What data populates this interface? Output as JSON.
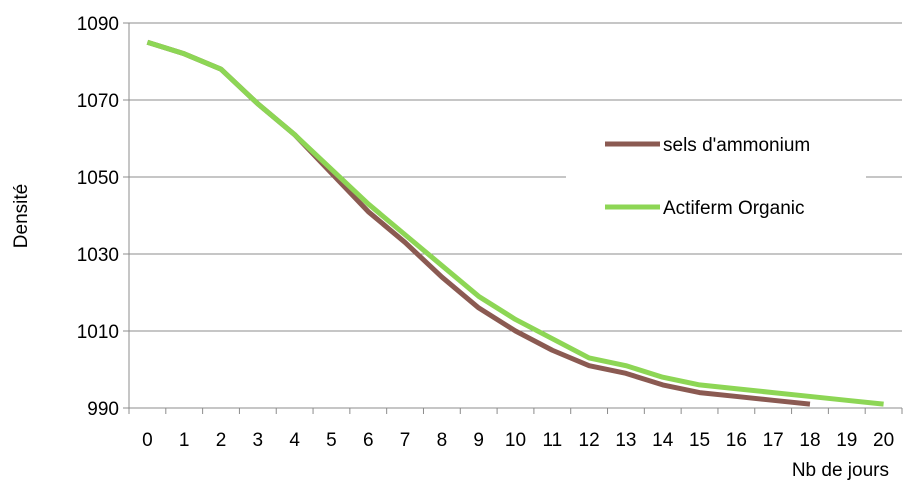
{
  "chart_data": {
    "type": "line",
    "title": "",
    "xlabel": "Nb de jours",
    "ylabel": "Densité",
    "x": [
      0,
      1,
      2,
      3,
      4,
      5,
      6,
      7,
      8,
      9,
      10,
      11,
      12,
      13,
      14,
      15,
      16,
      17,
      18,
      19,
      20
    ],
    "ylim": [
      990,
      1090
    ],
    "yticks": [
      990,
      1010,
      1030,
      1050,
      1070,
      1090
    ],
    "grid": "horizontal",
    "legend_position": "right",
    "series": [
      {
        "name": "sels d'ammonium",
        "color": "#8B5A52",
        "values": [
          1085,
          1082,
          1078,
          1069,
          1061,
          1051,
          1041,
          1033,
          1024,
          1016,
          1010,
          1005,
          1001,
          999,
          996,
          994,
          993,
          992,
          991,
          null,
          null
        ]
      },
      {
        "name": "Actiferm Organic",
        "color": "#8DD655",
        "values": [
          1085,
          1082,
          1078,
          1069,
          1061,
          1052,
          1043,
          1035,
          1027,
          1019,
          1013,
          1008,
          1003,
          1001,
          998,
          996,
          995,
          994,
          993,
          992,
          991
        ]
      }
    ]
  }
}
